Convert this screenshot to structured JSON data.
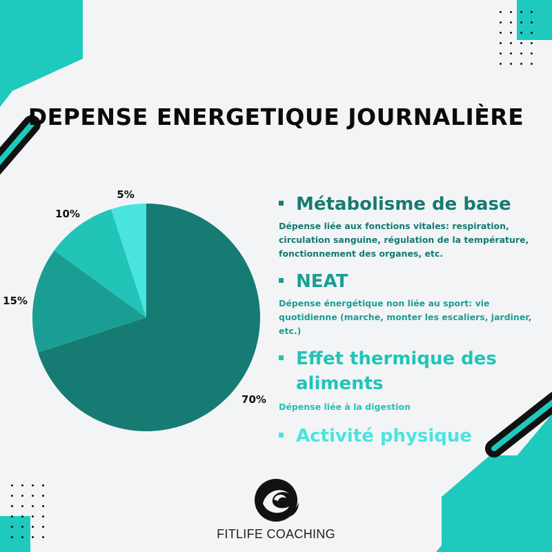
{
  "title": "DEPENSE ENERGETIQUE JOURNALIÈRE",
  "colors": {
    "background": "#f3f4f6",
    "accent": "#1ec9be",
    "metabolisme": "#167b72",
    "neat": "#1a9e94",
    "thermique": "#21c4b7",
    "activite": "#4ae4df"
  },
  "legend": [
    {
      "name": "Métabolisme de base",
      "desc": "Dépense liée aux fonctions vitales: respiration, circulation sanguine, régulation de la température, fonctionnement des organes, etc.",
      "color": "#167b72"
    },
    {
      "name": "NEAT",
      "desc": "Dépense énergétique non liée au sport: vie quotidienne (marche, monter les escaliers, jardiner, etc.)",
      "color": "#1a9e94"
    },
    {
      "name": "Effet thermique des aliments",
      "desc": "Dépense liée à la digestion",
      "color": "#21c4b7"
    },
    {
      "name": "Activité physique",
      "desc": "",
      "color": "#4ae4df"
    }
  ],
  "chart_data": {
    "type": "pie",
    "title": "DEPENSE ENERGETIQUE JOURNALIÈRE",
    "categories": [
      "Métabolisme de base",
      "NEAT",
      "Effet thermique des aliments",
      "Activité physique"
    ],
    "values": [
      70,
      15,
      10,
      5
    ],
    "labels": [
      "70%",
      "15%",
      "10%",
      "5%"
    ],
    "colors": [
      "#167b72",
      "#1a9e94",
      "#21c4b7",
      "#4ae4df"
    ],
    "legend": "right"
  },
  "brand": {
    "name": "FITLIFE COACHING",
    "logo_icon": "wave-circle-logo"
  }
}
